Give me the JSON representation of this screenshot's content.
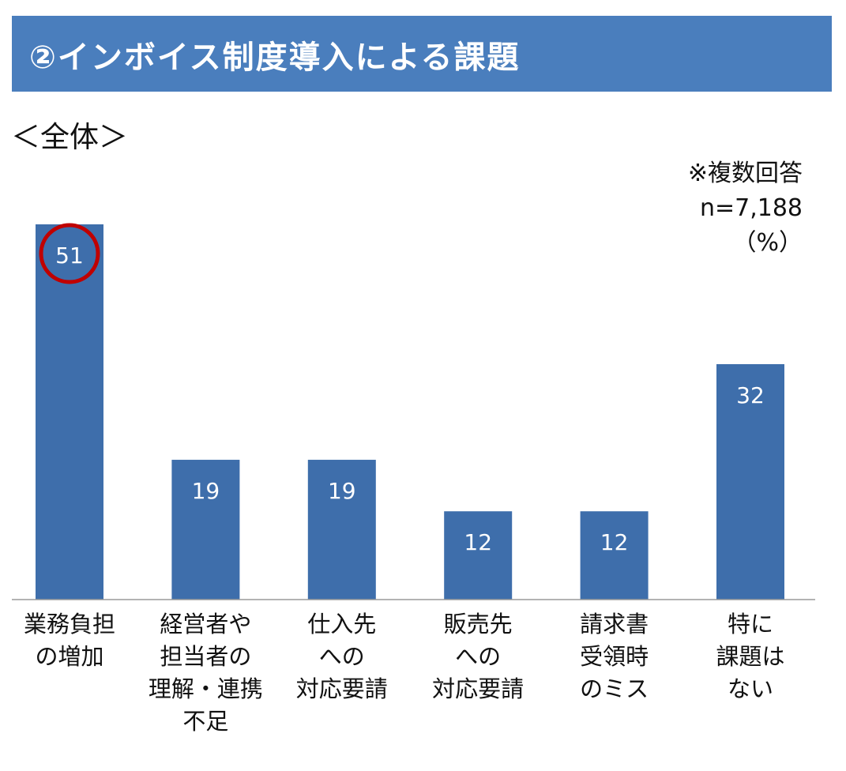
{
  "header": {
    "title": "②インボイス制度導入による課題"
  },
  "subtitle": "＜全体＞",
  "notes": {
    "multi_answer": "※複数回答",
    "sample_size": "n=7,188",
    "unit": "（%）"
  },
  "colors": {
    "banner": "#4a7ebd",
    "bar": "#3e6eab",
    "highlight": "#c00000",
    "label_text": "#ffffff"
  },
  "chart_data": {
    "type": "bar",
    "categories": [
      [
        "業務負担",
        "の増加"
      ],
      [
        "経営者や",
        "担当者の",
        "理解・連携",
        "不足"
      ],
      [
        "仕入先",
        "への",
        "対応要請"
      ],
      [
        "販売先",
        "への",
        "対応要請"
      ],
      [
        "請求書",
        "受領時",
        "のミス"
      ],
      [
        "特に",
        "課題は",
        "ない"
      ]
    ],
    "values": [
      51,
      19,
      19,
      12,
      12,
      32
    ],
    "data_labels": [
      "51",
      "19",
      "19",
      "12",
      "12",
      "32"
    ],
    "highlighted_index": 0,
    "title": "",
    "xlabel": "",
    "ylabel": "",
    "ylim": [
      0,
      51
    ],
    "grid": false,
    "legend": "none"
  }
}
